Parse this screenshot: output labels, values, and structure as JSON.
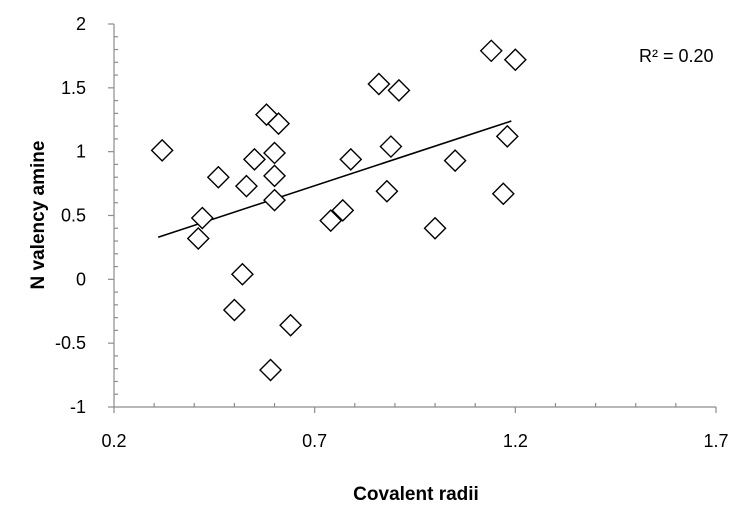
{
  "chart_data": {
    "type": "scatter",
    "title": "",
    "xlabel": "Covalent radii",
    "ylabel": "N valency amine",
    "xlim": [
      0.2,
      1.7
    ],
    "ylim": [
      -1,
      2
    ],
    "x_ticks": [
      0.2,
      0.7,
      1.2,
      1.7
    ],
    "x_tick_labels": [
      "0.2",
      "0.7",
      "1.2",
      "1.7"
    ],
    "y_ticks": [
      -1,
      -0.5,
      0,
      0.5,
      1,
      1.5,
      2
    ],
    "y_tick_labels": [
      "-1",
      "-0.5",
      "0",
      "0.5",
      "1",
      "1.5",
      "2"
    ],
    "grid": false,
    "marker": "diamond",
    "series": [
      {
        "points": [
          {
            "x": 0.32,
            "y": 1.01
          },
          {
            "x": 0.41,
            "y": 0.32
          },
          {
            "x": 0.42,
            "y": 0.48
          },
          {
            "x": 0.46,
            "y": 0.8
          },
          {
            "x": 0.5,
            "y": -0.24
          },
          {
            "x": 0.52,
            "y": 0.04
          },
          {
            "x": 0.53,
            "y": 0.73
          },
          {
            "x": 0.55,
            "y": 0.94
          },
          {
            "x": 0.58,
            "y": 1.29
          },
          {
            "x": 0.59,
            "y": -0.71
          },
          {
            "x": 0.6,
            "y": 0.81
          },
          {
            "x": 0.6,
            "y": 0.99
          },
          {
            "x": 0.6,
            "y": 0.62
          },
          {
            "x": 0.61,
            "y": 1.22
          },
          {
            "x": 0.64,
            "y": -0.36
          },
          {
            "x": 0.74,
            "y": 0.46
          },
          {
            "x": 0.77,
            "y": 0.54
          },
          {
            "x": 0.79,
            "y": 0.94
          },
          {
            "x": 0.86,
            "y": 1.53
          },
          {
            "x": 0.88,
            "y": 0.69
          },
          {
            "x": 0.89,
            "y": 1.04
          },
          {
            "x": 0.91,
            "y": 1.48
          },
          {
            "x": 1.0,
            "y": 0.4
          },
          {
            "x": 1.05,
            "y": 0.93
          },
          {
            "x": 1.14,
            "y": 1.79
          },
          {
            "x": 1.17,
            "y": 0.67
          },
          {
            "x": 1.18,
            "y": 1.12
          },
          {
            "x": 1.2,
            "y": 1.72
          }
        ]
      }
    ],
    "trendline": {
      "type": "linear",
      "x": [
        0.31,
        1.19
      ],
      "y": [
        0.33,
        1.24
      ]
    },
    "annotation": "R² = 0.20"
  }
}
